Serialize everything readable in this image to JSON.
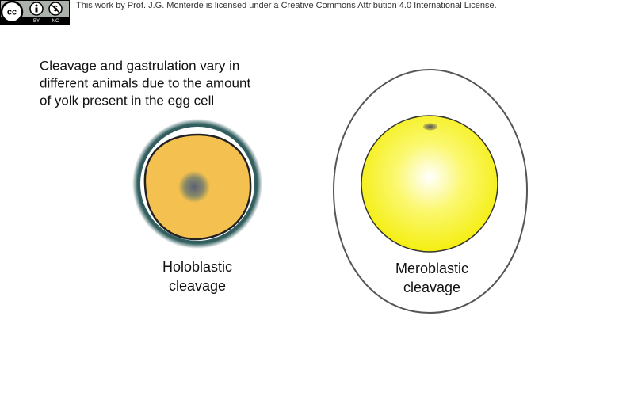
{
  "license": {
    "badge": {
      "symbol": "cc",
      "by": "BY",
      "nc": "NC"
    },
    "text": "This work by Prof. J.G. Monterde is licensed under a Creative Commons Attribution 4.0 International License."
  },
  "description": {
    "lines": [
      "Cleavage and gastrulation vary in",
      "different animals due to the amount",
      "of yolk present in the egg cell"
    ]
  },
  "figures": [
    {
      "label_lines": [
        "Holoblastic",
        "cleavage"
      ]
    },
    {
      "label_lines": [
        "Meroblastic",
        "cleavage"
      ]
    }
  ]
}
